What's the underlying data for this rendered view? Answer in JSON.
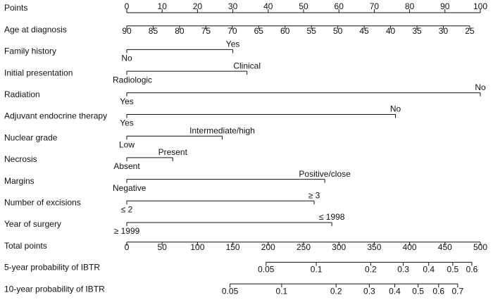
{
  "chart_data": {
    "type": "nomogram",
    "scales": [
      {
        "name": "Points",
        "lim": [
          0,
          100
        ],
        "points": [
          0,
          100
        ],
        "ticks": [
          0,
          10,
          20,
          30,
          40,
          50,
          60,
          70,
          80,
          90,
          100
        ]
      },
      {
        "name": "Age at diagnosis",
        "lim": [
          90,
          25
        ],
        "points": [
          0,
          97
        ],
        "ticks": [
          90,
          85,
          80,
          75,
          70,
          65,
          60,
          55,
          50,
          45,
          40,
          35,
          30,
          25
        ]
      },
      {
        "name": "Family history",
        "levels": [
          "No",
          "Yes"
        ],
        "points": [
          0,
          30
        ]
      },
      {
        "name": "Initial presentation",
        "levels": [
          "Radiologic",
          "Clinical"
        ],
        "points": [
          0,
          34
        ]
      },
      {
        "name": "Radiation",
        "levels": [
          "Yes",
          "No"
        ],
        "points": [
          0,
          100
        ]
      },
      {
        "name": "Adjuvant endocrine therapy",
        "levels": [
          "Yes",
          "No"
        ],
        "points": [
          0,
          76
        ]
      },
      {
        "name": "Nuclear grade",
        "levels": [
          "Low",
          "Intermediate/high"
        ],
        "points": [
          0,
          27
        ]
      },
      {
        "name": "Necrosis",
        "levels": [
          "Absent",
          "Present"
        ],
        "points": [
          0,
          13
        ]
      },
      {
        "name": "Margins",
        "levels": [
          "Negative",
          "Positive/close"
        ],
        "points": [
          0,
          56
        ]
      },
      {
        "name": "Number of excisions",
        "levels": [
          "≤ 2",
          "≥ 3"
        ],
        "points": [
          0,
          53
        ]
      },
      {
        "name": "Year of surgery",
        "levels": [
          "≥ 1999",
          "≤ 1998"
        ],
        "points": [
          0,
          58
        ]
      },
      {
        "name": "Total points",
        "lim": [
          0,
          500
        ],
        "points": [
          0,
          100
        ],
        "ticks": [
          0,
          50,
          100,
          150,
          200,
          250,
          300,
          350,
          400,
          450,
          500
        ]
      },
      {
        "name": "5-year probability of IBTR",
        "ticks": [
          0.05,
          0.1,
          0.2,
          0.3,
          0.4,
          0.5,
          0.6
        ],
        "total_points": [
          197,
          268,
          345,
          391,
          427,
          461,
          488
        ]
      },
      {
        "name": "10-year probability of IBTR",
        "ticks": [
          0.05,
          0.1,
          0.2,
          0.3,
          0.4,
          0.5,
          0.6,
          0.7
        ],
        "total_points": [
          146,
          219,
          296,
          343,
          379,
          412,
          441,
          468
        ]
      }
    ]
  }
}
